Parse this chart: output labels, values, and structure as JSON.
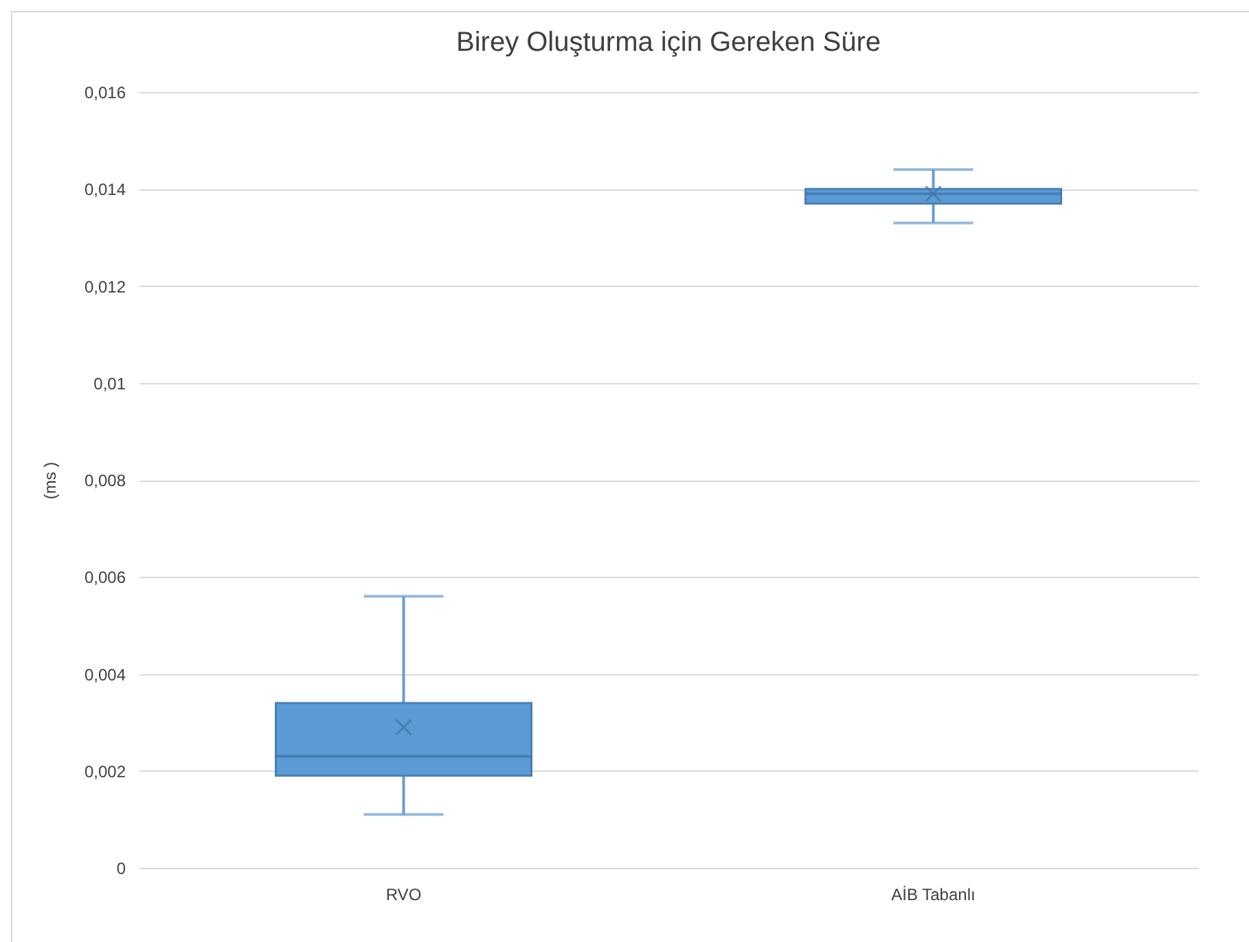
{
  "chart_data": {
    "type": "box",
    "title": "Birey Oluşturma  için Gereken Süre",
    "ylabel": "(ms )",
    "categories": [
      "RVO",
      "AİB Tabanlı"
    ],
    "boxes": [
      {
        "low": 0.0011,
        "q1": 0.0019,
        "median": 0.0023,
        "q3": 0.0034,
        "high": 0.0056,
        "mean": 0.0029
      },
      {
        "low": 0.0133,
        "q1": 0.0137,
        "median": 0.0139,
        "q3": 0.014,
        "high": 0.0144,
        "mean": 0.0139
      }
    ],
    "color": "#5b9bd5",
    "marker": "cross",
    "ylim": [
      0,
      0.016
    ],
    "yticks": [
      0,
      {
        "value": 0.002,
        "label": "0,002"
      },
      {
        "value": 0.004,
        "label": "0,004"
      },
      {
        "value": 0.006,
        "label": "0,006"
      },
      {
        "value": 0.008,
        "label": "0,008"
      },
      {
        "value": 0.01,
        "label": "0,01"
      },
      {
        "value": 0.012,
        "label": "0,012"
      },
      {
        "value": 0.014,
        "label": "0,014"
      },
      {
        "value": 0.016,
        "label": "0,016"
      }
    ],
    "grid": "y"
  }
}
